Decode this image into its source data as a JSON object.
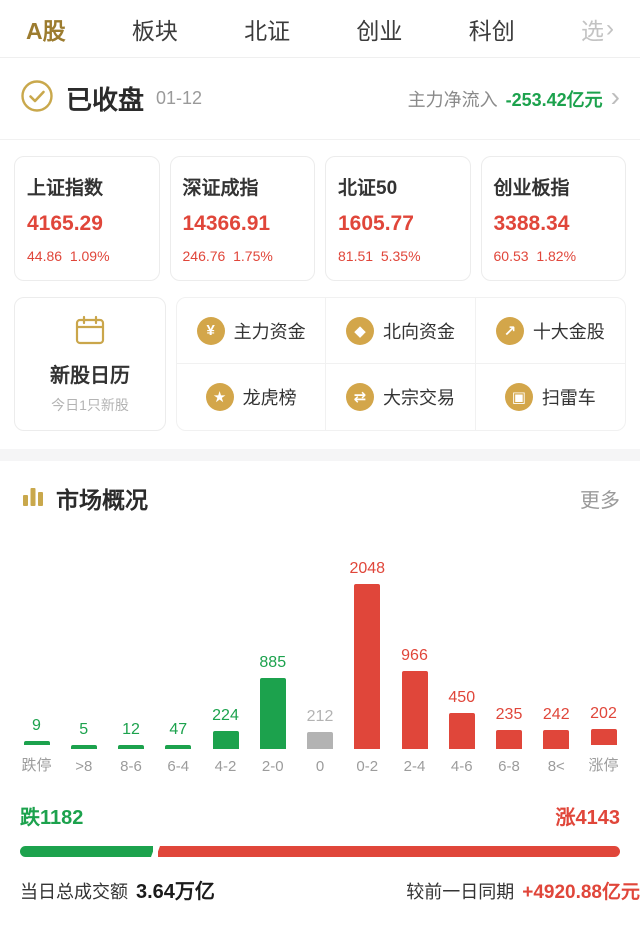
{
  "colors": {
    "accent_gold": "#9c7c2f",
    "icon_gold": "#d3a64a",
    "up_red": "#e0463a",
    "down_green": "#1ca24d",
    "flat_gray": "#b3b3b3"
  },
  "nav": {
    "tabs": [
      {
        "label": "A股"
      },
      {
        "label": "板块"
      },
      {
        "label": "北证"
      },
      {
        "label": "创业"
      },
      {
        "label": "科创"
      },
      {
        "label": "选"
      }
    ]
  },
  "status": {
    "title": "已收盘",
    "date": "01-12",
    "flow_label": "主力净流入",
    "flow_value": "-253.42亿元"
  },
  "indices": [
    {
      "name": "上证指数",
      "value": "4165.29",
      "change": "44.86",
      "pct": "1.09%"
    },
    {
      "name": "深证成指",
      "value": "14366.91",
      "change": "246.76",
      "pct": "1.75%"
    },
    {
      "name": "北证50",
      "value": "1605.77",
      "change": "81.51",
      "pct": "5.35%"
    },
    {
      "name": "创业板指",
      "value": "3388.34",
      "change": "60.53",
      "pct": "1.82%"
    }
  ],
  "calendar": {
    "title": "新股日历",
    "subtitle": "今日1只新股"
  },
  "shortcuts": [
    {
      "label": "主力资金",
      "icon": "¥"
    },
    {
      "label": "北向资金",
      "icon": "◆"
    },
    {
      "label": "十大金股",
      "icon": "↗"
    },
    {
      "label": "龙虎榜",
      "icon": "★"
    },
    {
      "label": "大宗交易",
      "icon": "⇄"
    },
    {
      "label": "扫雷车",
      "icon": "▣"
    }
  ],
  "overview": {
    "title": "市场概况",
    "more": "更多"
  },
  "chart_data": {
    "type": "bar",
    "title": "市场概况",
    "categories": [
      "跌停",
      ">8",
      "8-6",
      "6-4",
      "4-2",
      "2-0",
      "0",
      "0-2",
      "2-4",
      "4-6",
      "6-8",
      "8<",
      "涨停"
    ],
    "values": [
      9,
      5,
      12,
      47,
      224,
      885,
      212,
      2048,
      966,
      450,
      235,
      242,
      202
    ],
    "bar_kinds": [
      "down",
      "down",
      "down",
      "down",
      "down",
      "down",
      "flat",
      "up",
      "up",
      "up",
      "up",
      "up",
      "up"
    ],
    "ylim": [
      0,
      2048
    ],
    "grid": false,
    "value_labels": true,
    "legend": "none"
  },
  "summary": {
    "down_label": "跌1182",
    "up_label": "涨4143",
    "down_count": 1182,
    "up_count": 4143,
    "turnover_label": "当日总成交额",
    "turnover_value": "3.64万亿",
    "compare_label": "较前一日同期",
    "compare_value": "+4920.88亿元"
  }
}
